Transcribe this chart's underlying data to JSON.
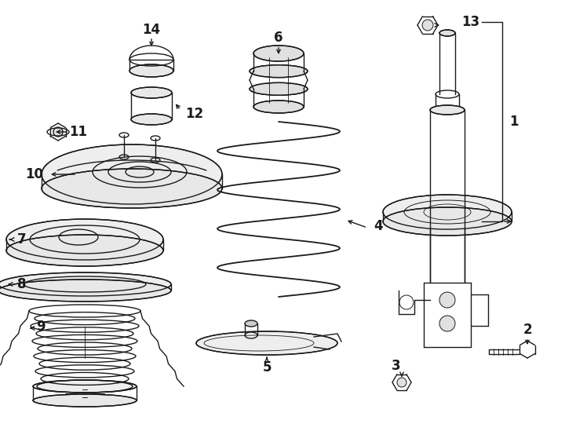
{
  "bg_color": "#ffffff",
  "line_color": "#1a1a1a",
  "lw": 1.0,
  "fig_width": 7.34,
  "fig_height": 5.4,
  "dpi": 100
}
